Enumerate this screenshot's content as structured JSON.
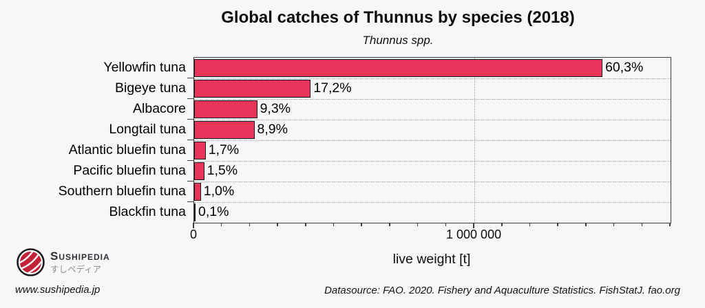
{
  "figure": {
    "title": "Global catches of Thunnus by species (2018)",
    "subtitle": "Thunnus spp."
  },
  "chart_data": {
    "type": "bar",
    "orientation": "horizontal",
    "title": "Global catches of Thunnus by species (2018)",
    "subtitle": "Thunnus spp.",
    "xlabel": "live weight [t]",
    "ylabel": "",
    "xlim": [
      0,
      1700000
    ],
    "x_minor_tick_interval": 100000,
    "x_major_ticks": [
      {
        "value": 0,
        "label": "0"
      },
      {
        "value": 1000000,
        "label": "1 000 000"
      }
    ],
    "grid": {
      "vertical_dotted_at_major_ticks": true,
      "horizontal_dotted_at_category_boundaries": true
    },
    "bar_color": "#e8355b",
    "bars": [
      {
        "label": "Yellowfin tuna",
        "percent": 60.3,
        "percent_label": "60,3%",
        "value_t_est": 1457000
      },
      {
        "label": "Bigeye tuna",
        "percent": 17.2,
        "percent_label": "17,2%",
        "value_t_est": 416000
      },
      {
        "label": "Albacore",
        "percent": 9.3,
        "percent_label": "9,3%",
        "value_t_est": 225000
      },
      {
        "label": "Longtail tuna",
        "percent": 8.9,
        "percent_label": "8,9%",
        "value_t_est": 215000
      },
      {
        "label": "Atlantic bluefin tuna",
        "percent": 1.7,
        "percent_label": "1,7%",
        "value_t_est": 41000
      },
      {
        "label": "Pacific bluefin tuna",
        "percent": 1.5,
        "percent_label": "1,5%",
        "value_t_est": 36000
      },
      {
        "label": "Southern bluefin tuna",
        "percent": 1.0,
        "percent_label": "1,0%",
        "value_t_est": 24000
      },
      {
        "label": "Blackfin tuna",
        "percent": 0.1,
        "percent_label": "0,1%",
        "value_t_est": 2400
      }
    ]
  },
  "footer": {
    "brand_name": "Sushipedia",
    "brand_kana": "すしペディア",
    "website": "www.sushipedia.jp",
    "datasource": "Datasource: FAO. 2020. Fishery and Aquaculture Statistics. FishStatJ. fao.org"
  },
  "colors": {
    "background": "#f7f7f7",
    "bar_fill": "#e8355b",
    "bar_border": "#17171c",
    "axis": "#3f3f3f",
    "gridline": "#a2a2a2",
    "logo_red": "#c22237",
    "brand_text": "#2d3137",
    "brand_kana_text": "#8e9196"
  }
}
